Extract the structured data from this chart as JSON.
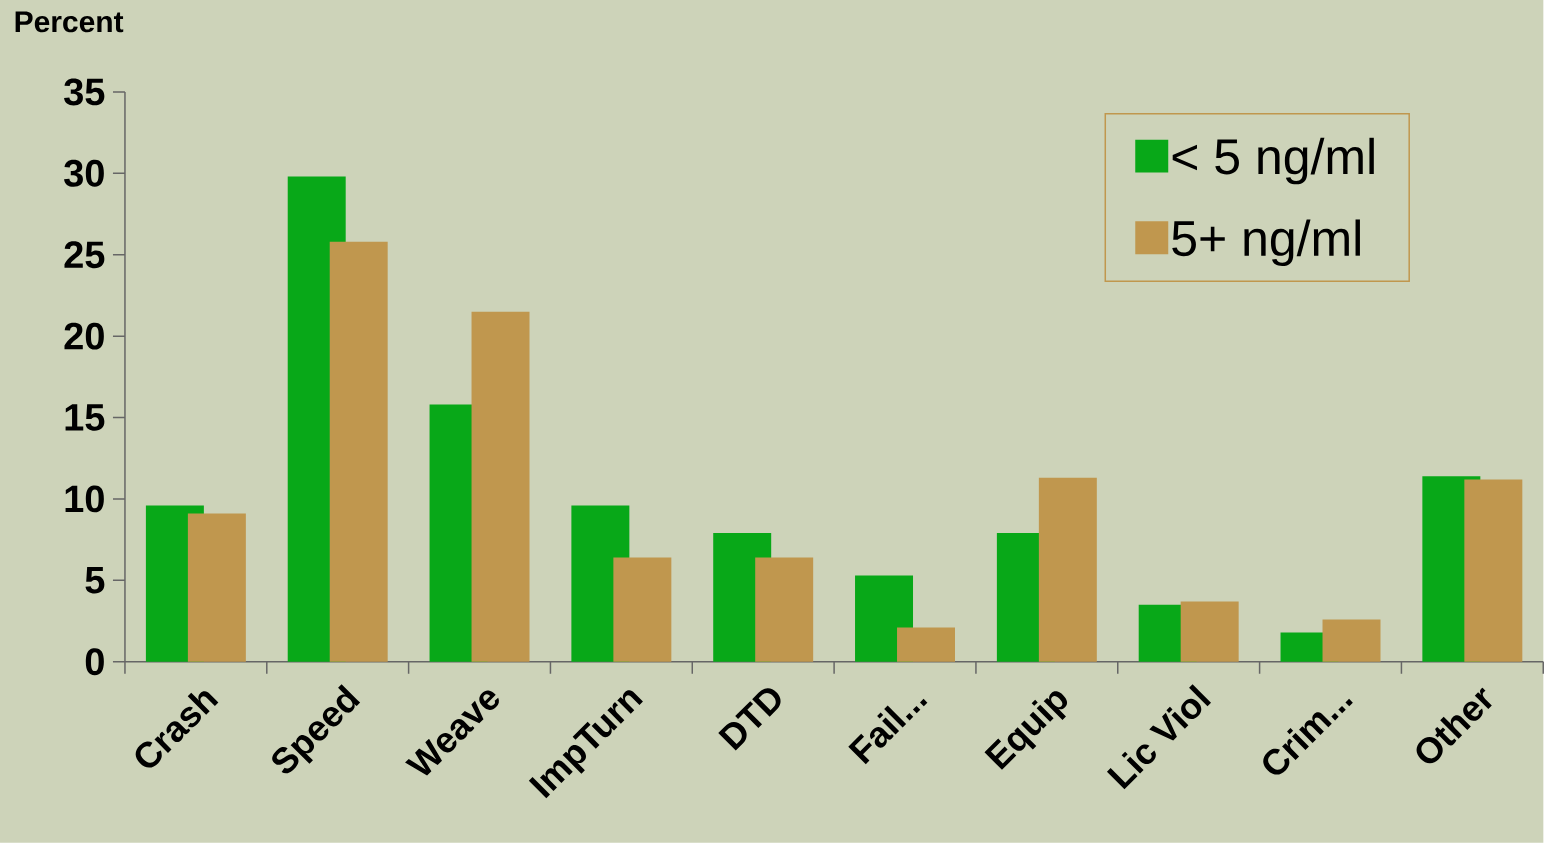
{
  "chart_data": {
    "type": "bar",
    "ylabel": "Percent",
    "categories": [
      "Crash",
      "Speed",
      "Weave",
      "ImpTurn",
      "DTD",
      "Fail...",
      "Equip",
      "Lic Viol",
      "Crim...",
      "Other"
    ],
    "series": [
      {
        "name": "< 5 ng/ml",
        "color": "#08a818",
        "values": [
          9.6,
          29.8,
          15.8,
          9.6,
          7.9,
          5.3,
          7.9,
          3.5,
          1.8,
          11.4
        ]
      },
      {
        "name": "5+ ng/ml",
        "color": "#c0974e",
        "values": [
          9.1,
          25.8,
          21.5,
          6.4,
          6.4,
          2.1,
          11.3,
          3.7,
          2.6,
          11.2
        ]
      }
    ],
    "ylim": [
      0,
      35
    ],
    "yticks": [
      0,
      5,
      10,
      15,
      20,
      25,
      30,
      35
    ],
    "legend": "top right"
  }
}
